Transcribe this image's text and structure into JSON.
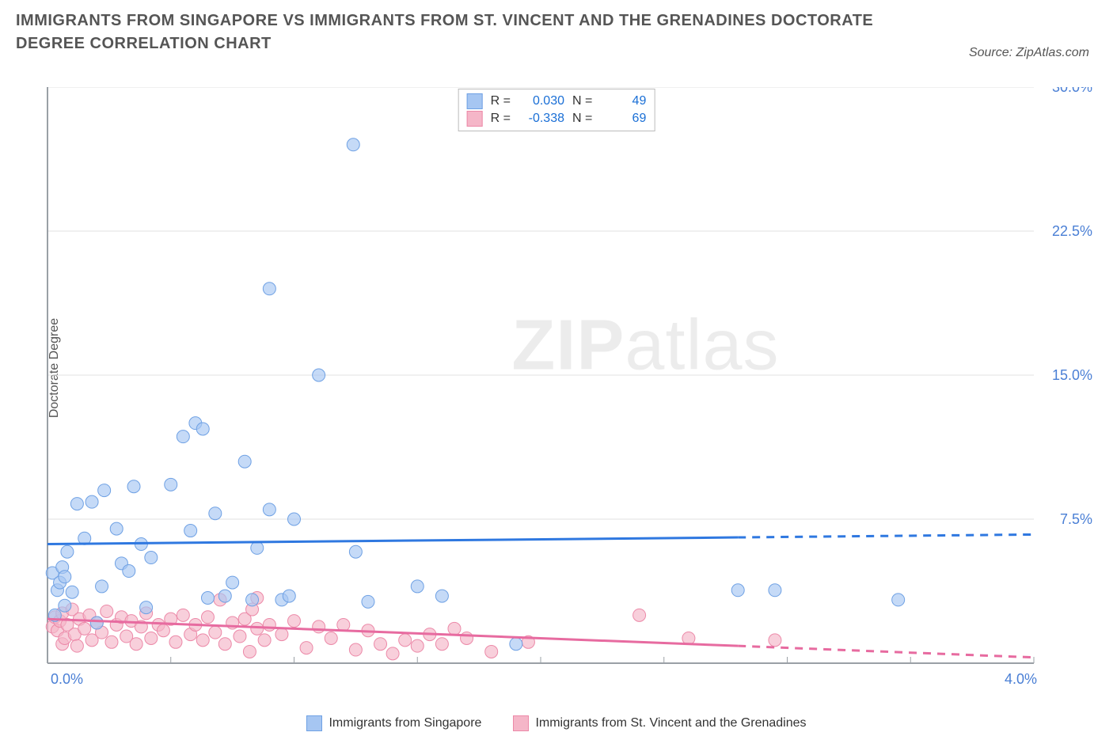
{
  "title": "IMMIGRANTS FROM SINGAPORE VS IMMIGRANTS FROM ST. VINCENT AND THE GRENADINES DOCTORATE DEGREE CORRELATION CHART",
  "source_label": "Source: ZipAtlas.com",
  "ylabel": "Doctorate Degree",
  "watermark_strong": "ZIP",
  "watermark_rest": "atlas",
  "chart": {
    "type": "scatter-with-regression",
    "background_color": "#ffffff",
    "gridline_color": "#e0e0e0",
    "axis_line_color": "#9aa0a6",
    "xlim": [
      0,
      4.0
    ],
    "ylim": [
      0,
      30.0
    ],
    "x_ticks": [
      {
        "v": 0.0,
        "label": "0.0%"
      },
      {
        "v": 0.5,
        "label": ""
      },
      {
        "v": 1.0,
        "label": ""
      },
      {
        "v": 1.5,
        "label": ""
      },
      {
        "v": 2.0,
        "label": ""
      },
      {
        "v": 2.5,
        "label": ""
      },
      {
        "v": 3.0,
        "label": ""
      },
      {
        "v": 3.5,
        "label": ""
      },
      {
        "v": 4.0,
        "label": "4.0%"
      }
    ],
    "y_ticks": [
      {
        "v": 7.5,
        "label": "7.5%"
      },
      {
        "v": 15.0,
        "label": "15.0%"
      },
      {
        "v": 22.5,
        "label": "22.5%"
      },
      {
        "v": 30.0,
        "label": "30.0%"
      }
    ],
    "series": [
      {
        "key": "singapore",
        "label": "Immigrants from Singapore",
        "color_fill": "#a6c6f2",
        "color_stroke": "#6fa1e4",
        "marker_radius": 8,
        "marker_opacity": 0.65,
        "R": "0.030",
        "N": "49",
        "regression": {
          "x0": 0.0,
          "y0": 6.2,
          "x1": 4.0,
          "y1": 6.7,
          "dash_split": 2.8,
          "color": "#2f78e0",
          "width": 3
        },
        "points": [
          [
            0.02,
            4.7
          ],
          [
            0.03,
            2.5
          ],
          [
            0.04,
            3.8
          ],
          [
            0.05,
            4.2
          ],
          [
            0.06,
            5.0
          ],
          [
            0.07,
            3.0
          ],
          [
            0.07,
            4.5
          ],
          [
            0.08,
            5.8
          ],
          [
            0.1,
            3.7
          ],
          [
            0.12,
            8.3
          ],
          [
            0.15,
            6.5
          ],
          [
            0.18,
            8.4
          ],
          [
            0.2,
            2.1
          ],
          [
            0.22,
            4.0
          ],
          [
            0.23,
            9.0
          ],
          [
            0.28,
            7.0
          ],
          [
            0.3,
            5.2
          ],
          [
            0.33,
            4.8
          ],
          [
            0.35,
            9.2
          ],
          [
            0.38,
            6.2
          ],
          [
            0.4,
            2.9
          ],
          [
            0.42,
            5.5
          ],
          [
            0.5,
            9.3
          ],
          [
            0.55,
            11.8
          ],
          [
            0.58,
            6.9
          ],
          [
            0.6,
            12.5
          ],
          [
            0.63,
            12.2
          ],
          [
            0.65,
            3.4
          ],
          [
            0.68,
            7.8
          ],
          [
            0.72,
            3.5
          ],
          [
            0.75,
            4.2
          ],
          [
            0.8,
            10.5
          ],
          [
            0.83,
            3.3
          ],
          [
            0.85,
            6.0
          ],
          [
            0.9,
            8.0
          ],
          [
            0.9,
            19.5
          ],
          [
            0.95,
            3.3
          ],
          [
            0.98,
            3.5
          ],
          [
            1.0,
            7.5
          ],
          [
            1.1,
            15.0
          ],
          [
            1.24,
            27.0
          ],
          [
            1.25,
            5.8
          ],
          [
            1.3,
            3.2
          ],
          [
            1.5,
            4.0
          ],
          [
            1.6,
            3.5
          ],
          [
            1.9,
            1.0
          ],
          [
            2.8,
            3.8
          ],
          [
            2.95,
            3.8
          ],
          [
            3.45,
            3.3
          ]
        ]
      },
      {
        "key": "svg_",
        "label": "Immigrants from St. Vincent and the Grenadines",
        "color_fill": "#f5b6c8",
        "color_stroke": "#ec89a8",
        "marker_radius": 8,
        "marker_opacity": 0.65,
        "R": "-0.338",
        "N": "69",
        "regression": {
          "x0": 0.0,
          "y0": 2.3,
          "x1": 4.0,
          "y1": 0.3,
          "dash_split": 2.8,
          "color": "#e76ba0",
          "width": 3
        },
        "points": [
          [
            0.02,
            1.9
          ],
          [
            0.03,
            2.4
          ],
          [
            0.04,
            1.7
          ],
          [
            0.05,
            2.2
          ],
          [
            0.06,
            1.0
          ],
          [
            0.06,
            2.6
          ],
          [
            0.07,
            1.3
          ],
          [
            0.08,
            2.0
          ],
          [
            0.1,
            2.8
          ],
          [
            0.11,
            1.5
          ],
          [
            0.12,
            0.9
          ],
          [
            0.13,
            2.3
          ],
          [
            0.15,
            1.8
          ],
          [
            0.17,
            2.5
          ],
          [
            0.18,
            1.2
          ],
          [
            0.2,
            2.1
          ],
          [
            0.22,
            1.6
          ],
          [
            0.24,
            2.7
          ],
          [
            0.26,
            1.1
          ],
          [
            0.28,
            2.0
          ],
          [
            0.3,
            2.4
          ],
          [
            0.32,
            1.4
          ],
          [
            0.34,
            2.2
          ],
          [
            0.36,
            1.0
          ],
          [
            0.38,
            1.9
          ],
          [
            0.4,
            2.6
          ],
          [
            0.42,
            1.3
          ],
          [
            0.45,
            2.0
          ],
          [
            0.47,
            1.7
          ],
          [
            0.5,
            2.3
          ],
          [
            0.52,
            1.1
          ],
          [
            0.55,
            2.5
          ],
          [
            0.58,
            1.5
          ],
          [
            0.6,
            2.0
          ],
          [
            0.63,
            1.2
          ],
          [
            0.65,
            2.4
          ],
          [
            0.68,
            1.6
          ],
          [
            0.7,
            3.3
          ],
          [
            0.72,
            1.0
          ],
          [
            0.75,
            2.1
          ],
          [
            0.78,
            1.4
          ],
          [
            0.8,
            2.3
          ],
          [
            0.82,
            0.6
          ],
          [
            0.83,
            2.8
          ],
          [
            0.85,
            1.8
          ],
          [
            0.85,
            3.4
          ],
          [
            0.88,
            1.2
          ],
          [
            0.9,
            2.0
          ],
          [
            0.95,
            1.5
          ],
          [
            1.0,
            2.2
          ],
          [
            1.05,
            0.8
          ],
          [
            1.1,
            1.9
          ],
          [
            1.15,
            1.3
          ],
          [
            1.2,
            2.0
          ],
          [
            1.25,
            0.7
          ],
          [
            1.3,
            1.7
          ],
          [
            1.35,
            1.0
          ],
          [
            1.4,
            0.5
          ],
          [
            1.45,
            1.2
          ],
          [
            1.5,
            0.9
          ],
          [
            1.55,
            1.5
          ],
          [
            1.6,
            1.0
          ],
          [
            1.65,
            1.8
          ],
          [
            1.7,
            1.3
          ],
          [
            1.8,
            0.6
          ],
          [
            1.95,
            1.1
          ],
          [
            2.4,
            2.5
          ],
          [
            2.6,
            1.3
          ],
          [
            2.95,
            1.2
          ]
        ]
      }
    ]
  },
  "legend_top": {
    "r_label": "R =",
    "n_label": "N ="
  }
}
